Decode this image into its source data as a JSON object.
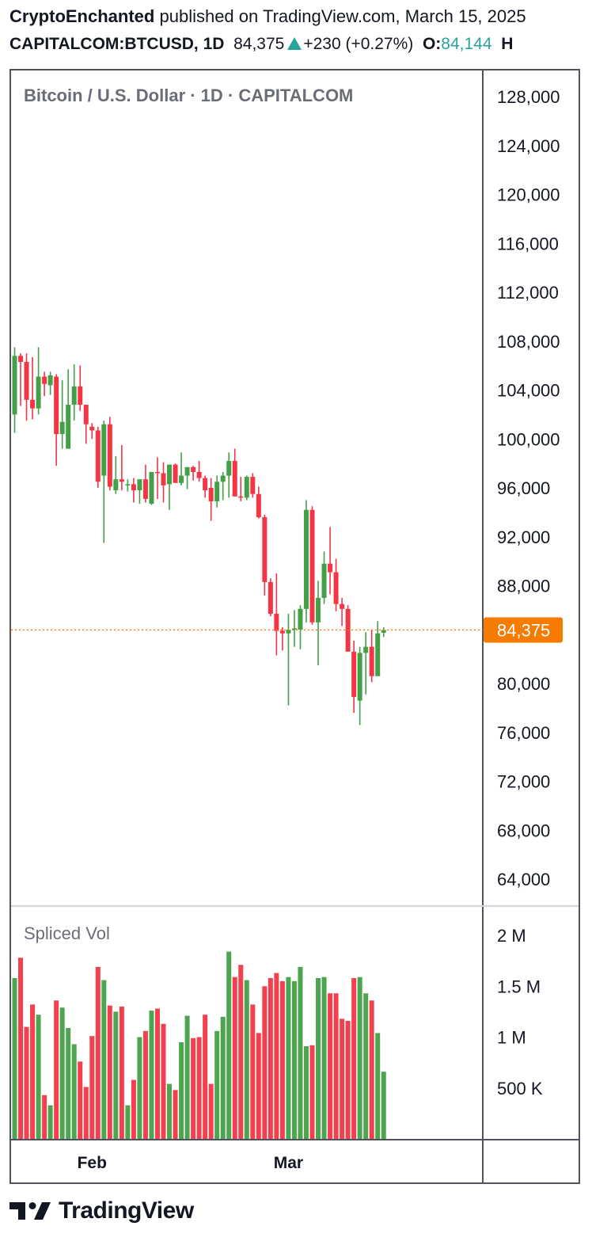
{
  "header": {
    "author": "CryptoEnchanted",
    "published_text": "published on TradingView.com, March 15, 2025",
    "symbol": "CAPITALCOM:BTCUSD, 1D",
    "last_price": "84,375",
    "change": "+230 (+0.27%)",
    "open_label": "O:",
    "open_value": "84,144",
    "high_label": "H"
  },
  "footer": {
    "brand": "TradingView"
  },
  "colors": {
    "up": "#43a047",
    "down": "#f23645",
    "price_line": "#f57c00",
    "change_up": "#26a69a"
  },
  "chart_data": {
    "type": "candlestick",
    "title": "Bitcoin / U.S. Dollar · 1D · CAPITALCOM",
    "x_tick_labels": [
      "Feb",
      "Mar"
    ],
    "y_ticks": [
      "128,000",
      "124,000",
      "120,000",
      "116,000",
      "112,000",
      "108,000",
      "104,000",
      "100,000",
      "96,000",
      "92,000",
      "88,000",
      "80,000",
      "76,000",
      "72,000",
      "68,000",
      "64,000"
    ],
    "ylim": [
      61000,
      130000
    ],
    "last_price_label": "84,375",
    "last_price": 84375,
    "candles": [
      {
        "o": 102000,
        "h": 107500,
        "l": 100500,
        "c": 106800
      },
      {
        "o": 106800,
        "h": 107000,
        "l": 102700,
        "c": 106300
      },
      {
        "o": 106300,
        "h": 107000,
        "l": 101500,
        "c": 103200
      },
      {
        "o": 103200,
        "h": 106700,
        "l": 101600,
        "c": 102500
      },
      {
        "o": 102500,
        "h": 107500,
        "l": 102000,
        "c": 105100
      },
      {
        "o": 105100,
        "h": 105500,
        "l": 103500,
        "c": 104500
      },
      {
        "o": 104400,
        "h": 105500,
        "l": 103600,
        "c": 105200
      },
      {
        "o": 105100,
        "h": 105300,
        "l": 97800,
        "c": 100400
      },
      {
        "o": 100400,
        "h": 104800,
        "l": 99200,
        "c": 101400
      },
      {
        "o": 99200,
        "h": 105700,
        "l": 99200,
        "c": 102800
      },
      {
        "o": 102800,
        "h": 106100,
        "l": 101500,
        "c": 104300
      },
      {
        "o": 104300,
        "h": 106000,
        "l": 102300,
        "c": 102800
      },
      {
        "o": 102800,
        "h": 102700,
        "l": 99600,
        "c": 101200
      },
      {
        "o": 101000,
        "h": 101300,
        "l": 100000,
        "c": 100700
      },
      {
        "o": 100700,
        "h": 101000,
        "l": 96000,
        "c": 96500
      },
      {
        "o": 97000,
        "h": 101500,
        "l": 91500,
        "c": 101200
      },
      {
        "o": 101200,
        "h": 101800,
        "l": 95800,
        "c": 96100
      },
      {
        "o": 95800,
        "h": 98600,
        "l": 95500,
        "c": 96700
      },
      {
        "o": 96700,
        "h": 99500,
        "l": 95800,
        "c": 96500
      },
      {
        "o": 96200,
        "h": 96700,
        "l": 95700,
        "c": 96300
      },
      {
        "o": 96300,
        "h": 96800,
        "l": 94800,
        "c": 95800
      },
      {
        "o": 95800,
        "h": 96700,
        "l": 94700,
        "c": 96700
      },
      {
        "o": 96700,
        "h": 97900,
        "l": 94800,
        "c": 95100
      },
      {
        "o": 94700,
        "h": 97300,
        "l": 94600,
        "c": 97300
      },
      {
        "o": 97300,
        "h": 98500,
        "l": 95100,
        "c": 97200
      },
      {
        "o": 97200,
        "h": 98100,
        "l": 94800,
        "c": 96200
      },
      {
        "o": 96300,
        "h": 97900,
        "l": 94200,
        "c": 97900
      },
      {
        "o": 97900,
        "h": 98000,
        "l": 96800,
        "c": 96400
      },
      {
        "o": 96400,
        "h": 98900,
        "l": 96200,
        "c": 97000
      },
      {
        "o": 97000,
        "h": 97200,
        "l": 95900,
        "c": 97700
      },
      {
        "o": 97700,
        "h": 97800,
        "l": 96600,
        "c": 97300
      },
      {
        "o": 97300,
        "h": 98200,
        "l": 96500,
        "c": 96800
      },
      {
        "o": 96800,
        "h": 97000,
        "l": 95200,
        "c": 95800
      },
      {
        "o": 96000,
        "h": 96800,
        "l": 93300,
        "c": 94900
      },
      {
        "o": 94900,
        "h": 97000,
        "l": 94400,
        "c": 96500
      },
      {
        "o": 96500,
        "h": 97300,
        "l": 95000,
        "c": 97000
      },
      {
        "o": 97000,
        "h": 98900,
        "l": 95200,
        "c": 98200
      },
      {
        "o": 98200,
        "h": 99200,
        "l": 95800,
        "c": 95300
      },
      {
        "o": 95300,
        "h": 96900,
        "l": 94900,
        "c": 95200
      },
      {
        "o": 95200,
        "h": 97000,
        "l": 95000,
        "c": 96900
      },
      {
        "o": 96900,
        "h": 97200,
        "l": 95200,
        "c": 95500
      },
      {
        "o": 95500,
        "h": 96100,
        "l": 93500,
        "c": 93600
      },
      {
        "o": 93600,
        "h": 93800,
        "l": 87200,
        "c": 88300
      },
      {
        "o": 88300,
        "h": 88600,
        "l": 85500,
        "c": 85700
      },
      {
        "o": 85700,
        "h": 89000,
        "l": 82300,
        "c": 84300
      },
      {
        "o": 84300,
        "h": 84600,
        "l": 82700,
        "c": 84100
      },
      {
        "o": 84100,
        "h": 85700,
        "l": 78200,
        "c": 84400
      },
      {
        "o": 84400,
        "h": 86000,
        "l": 83000,
        "c": 84500
      },
      {
        "o": 84400,
        "h": 86400,
        "l": 82800,
        "c": 86100
      },
      {
        "o": 86100,
        "h": 95000,
        "l": 85000,
        "c": 94200
      },
      {
        "o": 94200,
        "h": 94500,
        "l": 84800,
        "c": 85000
      },
      {
        "o": 85000,
        "h": 88400,
        "l": 81500,
        "c": 87000
      },
      {
        "o": 87000,
        "h": 90800,
        "l": 86500,
        "c": 89800
      },
      {
        "o": 89800,
        "h": 92800,
        "l": 87300,
        "c": 89100
      },
      {
        "o": 89100,
        "h": 90200,
        "l": 85900,
        "c": 86500
      },
      {
        "o": 86500,
        "h": 87000,
        "l": 84700,
        "c": 86100
      },
      {
        "o": 86100,
        "h": 86400,
        "l": 82700,
        "c": 82600
      },
      {
        "o": 82600,
        "h": 83500,
        "l": 77600,
        "c": 78900
      },
      {
        "o": 78600,
        "h": 83000,
        "l": 76600,
        "c": 82500
      },
      {
        "o": 82500,
        "h": 84200,
        "l": 79100,
        "c": 83000
      },
      {
        "o": 83000,
        "h": 84400,
        "l": 80100,
        "c": 80600
      },
      {
        "o": 80600,
        "h": 85100,
        "l": 80600,
        "c": 84100
      },
      {
        "o": 84144,
        "h": 84600,
        "l": 83800,
        "c": 84375
      }
    ],
    "volume": {
      "label": "Spliced Vol",
      "y_ticks": [
        "2 M",
        "1.5 M",
        "1 M",
        "500 K"
      ],
      "ylim": [
        0,
        2250000
      ],
      "values": [
        1580000,
        1780000,
        1100000,
        1320000,
        1220000,
        430000,
        330000,
        1360000,
        1290000,
        1090000,
        930000,
        760000,
        510000,
        1010000,
        1690000,
        1560000,
        1310000,
        1250000,
        1300000,
        330000,
        580000,
        1000000,
        1060000,
        1260000,
        1280000,
        1130000,
        540000,
        480000,
        950000,
        1210000,
        990000,
        1000000,
        1220000,
        540000,
        1060000,
        1200000,
        1840000,
        1590000,
        1710000,
        1560000,
        1320000,
        1040000,
        1500000,
        1580000,
        1630000,
        1550000,
        1590000,
        1550000,
        1690000,
        910000,
        920000,
        1580000,
        1590000,
        1430000,
        1430000,
        1180000,
        1160000,
        1580000,
        1590000,
        1430000,
        1360000,
        1040000,
        660000
      ]
    }
  }
}
